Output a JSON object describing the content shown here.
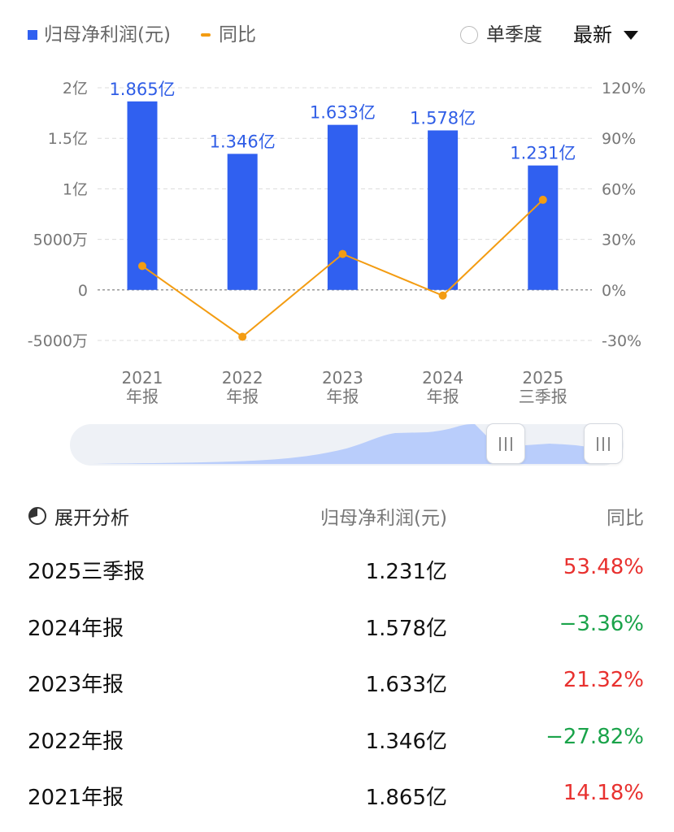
{
  "legend": {
    "bar_label": "归母净利润(元)",
    "line_label": "同比",
    "single_quarter_label": "单季度",
    "period_select": "最新"
  },
  "colors": {
    "bar": "#3060f0",
    "line": "#f39c12",
    "positive": "#e8312f",
    "negative": "#1aa34a",
    "grid": "#dcdcdc",
    "axis_text": "#777777"
  },
  "chart_data": {
    "type": "bar",
    "categories": [
      [
        "2021",
        "年报"
      ],
      [
        "2022",
        "年报"
      ],
      [
        "2023",
        "年报"
      ],
      [
        "2024",
        "年报"
      ],
      [
        "2025",
        "三季报"
      ]
    ],
    "series": [
      {
        "name": "归母净利润(元)",
        "type": "bar",
        "axis": "left",
        "values": [
          1.865,
          1.346,
          1.633,
          1.578,
          1.231
        ],
        "data_labels": [
          "1.865亿",
          "1.346亿",
          "1.633亿",
          "1.578亿",
          "1.231亿"
        ]
      },
      {
        "name": "同比",
        "type": "line",
        "axis": "right",
        "values": [
          14.18,
          -27.82,
          21.32,
          -3.36,
          53.48
        ]
      }
    ],
    "y_left": {
      "ylim": [
        -0.5,
        2
      ],
      "ticks": [
        2,
        1.5,
        1,
        0.5,
        0,
        -0.5
      ],
      "tick_labels": [
        "2亿",
        "1.5亿",
        "1亿",
        "5000万",
        "0",
        "-5000万"
      ]
    },
    "y_right": {
      "ylim": [
        -30,
        120
      ],
      "ticks": [
        120,
        90,
        60,
        30,
        0,
        -30
      ],
      "tick_labels": [
        "120%",
        "90%",
        "60%",
        "30%",
        "0%",
        "-30%"
      ]
    },
    "grid": true,
    "legend_position": "top-left"
  },
  "table": {
    "expand_label": "展开分析",
    "col_value": "归母净利润(元)",
    "col_yoy": "同比",
    "rows": [
      {
        "period": "2025三季报",
        "value": "1.231亿",
        "yoy": "53.48%",
        "sign": "pos"
      },
      {
        "period": "2024年报",
        "value": "1.578亿",
        "yoy": "−3.36%",
        "sign": "neg"
      },
      {
        "period": "2023年报",
        "value": "1.633亿",
        "yoy": "21.32%",
        "sign": "pos"
      },
      {
        "period": "2022年报",
        "value": "1.346亿",
        "yoy": "−27.82%",
        "sign": "neg"
      },
      {
        "period": "2021年报",
        "value": "1.865亿",
        "yoy": "14.18%",
        "sign": "pos"
      }
    ]
  }
}
